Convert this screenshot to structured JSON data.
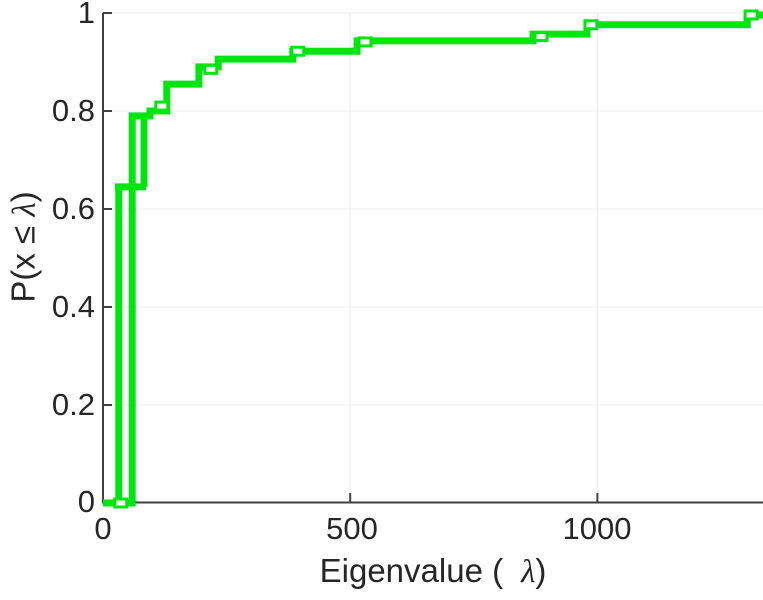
{
  "figure": {
    "background": "#ffffff",
    "text_color": "#262626"
  },
  "chart_data": {
    "type": "line",
    "subtype": "empirical-cdf-staircase",
    "title": "",
    "xlabel": {
      "pre": "Eigenvalue (",
      "lambda": "λ",
      "post": ")"
    },
    "ylabel": {
      "pre": "P(x ≤ ",
      "lambda": "λ",
      "post": ")"
    },
    "xlim": [
      0,
      1335
    ],
    "ylim": [
      0,
      1
    ],
    "xticks": [
      {
        "v": 0,
        "label": "0"
      },
      {
        "v": 500,
        "label": "500"
      },
      {
        "v": 1000,
        "label": "1000"
      }
    ],
    "yticks": [
      {
        "v": 1,
        "label": "1"
      },
      {
        "v": 0.8,
        "label": "0.8"
      },
      {
        "v": 0.6,
        "label": "0.6"
      },
      {
        "v": 0.4,
        "label": "0.4"
      },
      {
        "v": 0.2,
        "label": "0.2"
      },
      {
        "v": 0,
        "label": "0"
      }
    ],
    "grid": true,
    "legend": null,
    "line_color": "#00e50f",
    "line_width": 7,
    "marker": "square-hollow",
    "marker_fill": "#ffffff",
    "grid_color": "#ececec",
    "axis_color": "#414141",
    "curve_segments": [
      [
        [
          0,
          0
        ],
        [
          59,
          0
        ],
        [
          59,
          0.79
        ],
        [
          95,
          0.79
        ],
        [
          95,
          0.8
        ],
        [
          129,
          0.8
        ],
        [
          129,
          0.855
        ],
        [
          194,
          0.855
        ],
        [
          194,
          0.89
        ],
        [
          233,
          0.89
        ],
        [
          233,
          0.906
        ],
        [
          384,
          0.906
        ],
        [
          384,
          0.922
        ],
        [
          514,
          0.922
        ],
        [
          514,
          0.943
        ],
        [
          870,
          0.943
        ],
        [
          870,
          0.957
        ],
        [
          979,
          0.957
        ],
        [
          979,
          0.976
        ],
        [
          1303,
          0.976
        ],
        [
          1303,
          0.996
        ],
        [
          1335,
          0.996
        ]
      ],
      [
        [
          32,
          0
        ],
        [
          32,
          0.645
        ]
      ],
      [
        [
          24,
          0.645
        ],
        [
          87,
          0.645
        ]
      ],
      [
        [
          83,
          0.645
        ],
        [
          83,
          0.79
        ]
      ]
    ],
    "marker_points": [
      [
        36,
        0
      ],
      [
        119,
        0.81
      ],
      [
        218,
        0.885
      ],
      [
        394,
        0.922
      ],
      [
        530,
        0.941
      ],
      [
        886,
        0.952
      ],
      [
        987,
        0.976
      ],
      [
        1311,
        0.996
      ]
    ]
  }
}
